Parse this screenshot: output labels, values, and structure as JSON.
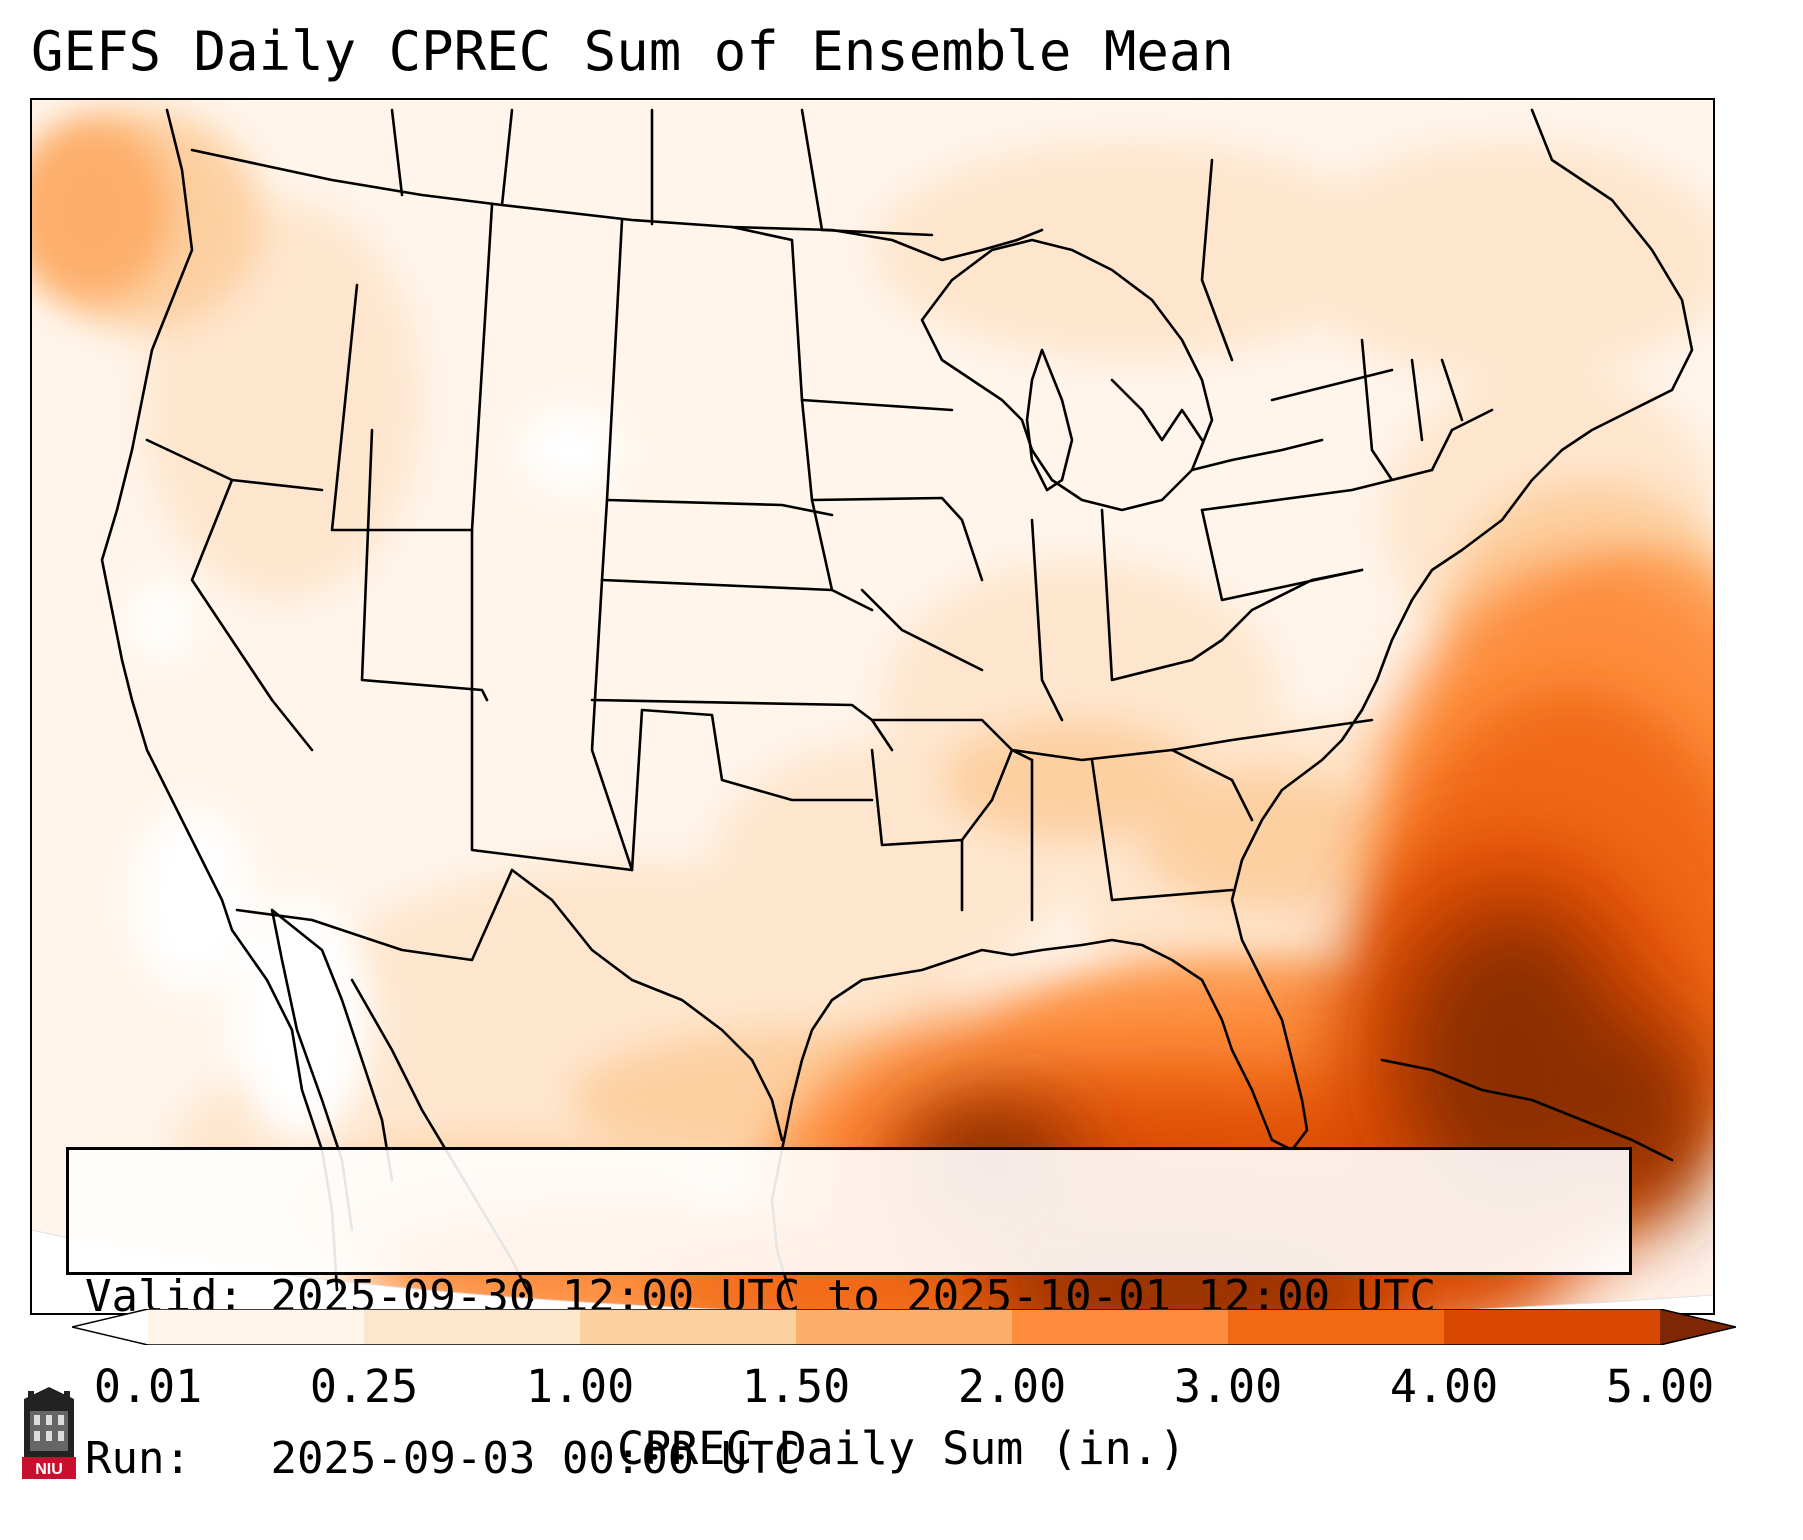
{
  "title": "GEFS Daily CPREC Sum of Ensemble Mean",
  "info": {
    "valid_label": "Valid:",
    "valid_value": "2025-09-30 12:00 UTC to 2025-10-01 12:00 UTC",
    "run_label": "Run:",
    "run_value": "2025-09-03 00:00 UTC"
  },
  "colorbar": {
    "label": "CPREC Daily Sum (in.)",
    "ticks": [
      "0.01",
      "0.25",
      "1.00",
      "1.50",
      "2.00",
      "3.00",
      "4.00",
      "5.00"
    ],
    "colors": [
      "#fff5eb",
      "#fee6ce",
      "#fdd0a2",
      "#fdae6b",
      "#fd8d3c",
      "#f16913",
      "#d94801",
      "#8c2d04"
    ],
    "under_color": "#ffffff",
    "over_color": "#7f2704"
  },
  "logo": {
    "text": "NIU",
    "color": "#c8102e"
  }
}
